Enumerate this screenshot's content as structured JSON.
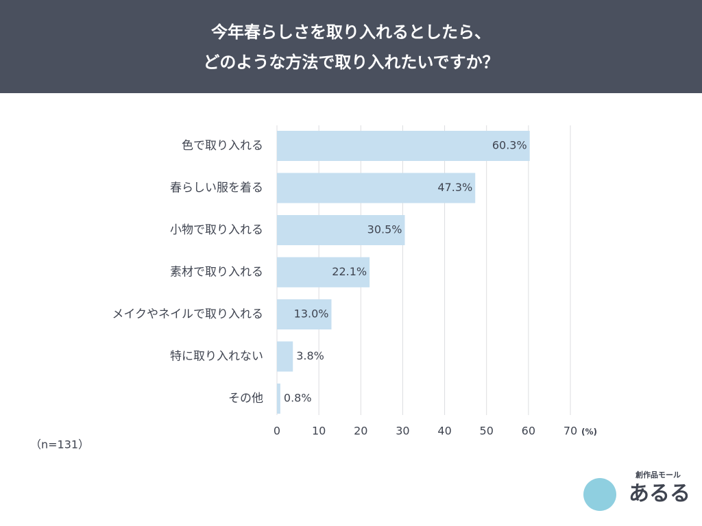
{
  "chart_data": {
    "type": "hbar",
    "title": [
      "今年春らしさを取り入れるとしたら、",
      "どのような方法で取り入れたいですか？"
    ],
    "categories": [
      "色で取り入れる",
      "春らしい服を着る",
      "小物で取り入れる",
      "素材で取り入れる",
      "メイクやネイルで取り入れる",
      "特に取り入れない",
      "その他"
    ],
    "values": [
      60.3,
      47.3,
      30.5,
      22.1,
      13.0,
      3.8,
      0.8
    ],
    "value_labels": [
      "60.3%",
      "47.3%",
      "30.5%",
      "22.1%",
      "13.0%",
      "3.8%",
      "0.8%"
    ],
    "color": "#c6dff0",
    "xlim": [
      0,
      70
    ],
    "xticks": [
      0,
      10,
      20,
      30,
      40,
      50,
      60,
      70
    ],
    "xlabel": "(%)",
    "grid": true,
    "note": "（n=131）"
  },
  "logo": {
    "tagline": "創作品モール",
    "name": "あるる"
  }
}
